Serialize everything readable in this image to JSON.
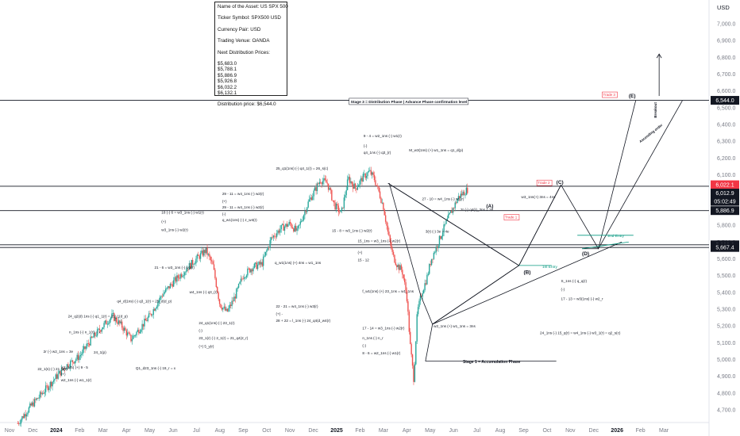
{
  "chart_data": {
    "type": "candlestick",
    "currency": "USD",
    "y_range": [
      4620,
      7160
    ],
    "x_range_months": [
      0,
      28
    ],
    "y_ticks": [
      "7,000.0",
      "6,900.0",
      "6,800.0",
      "6,700.0",
      "6,600.0",
      "6,500.0",
      "6,400.0",
      "6,300.0",
      "6,200.0",
      "6,100.0",
      "6,000.0",
      "5,900.0",
      "5,800.0",
      "5,700.0",
      "5,600.0",
      "5,500.0",
      "5,400.0",
      "5,300.0",
      "5,200.0",
      "5,100.0",
      "5,000.0",
      "4,900.0",
      "4,800.0",
      "4,700.0"
    ],
    "y_tick_values": [
      7000,
      6900,
      6800,
      6700,
      6600,
      6500,
      6400,
      6300,
      6200,
      6100,
      6000,
      5900,
      5800,
      5700,
      5600,
      5500,
      5400,
      5300,
      5200,
      5100,
      5000,
      4900,
      4800,
      4700
    ],
    "x_ticks": [
      {
        "label": "Nov",
        "m": 0
      },
      {
        "label": "Dec",
        "m": 1
      },
      {
        "label": "2024",
        "m": 2
      },
      {
        "label": "Feb",
        "m": 3
      },
      {
        "label": "Mar",
        "m": 4
      },
      {
        "label": "Apr",
        "m": 5
      },
      {
        "label": "May",
        "m": 6
      },
      {
        "label": "Jun",
        "m": 7
      },
      {
        "label": "Jul",
        "m": 8
      },
      {
        "label": "Aug",
        "m": 9
      },
      {
        "label": "Sep",
        "m": 10
      },
      {
        "label": "Oct",
        "m": 11
      },
      {
        "label": "Nov",
        "m": 12
      },
      {
        "label": "Dec",
        "m": 13
      },
      {
        "label": "2025",
        "m": 14
      },
      {
        "label": "Feb",
        "m": 15
      },
      {
        "label": "Mar",
        "m": 16
      },
      {
        "label": "Apr",
        "m": 17
      },
      {
        "label": "May",
        "m": 18
      },
      {
        "label": "Jun",
        "m": 19
      },
      {
        "label": "Jul",
        "m": 20
      },
      {
        "label": "Aug",
        "m": 21
      },
      {
        "label": "Sep",
        "m": 22
      },
      {
        "label": "Oct",
        "m": 23
      },
      {
        "label": "Nov",
        "m": 24
      },
      {
        "label": "Dec",
        "m": 25
      },
      {
        "label": "2026",
        "m": 26
      },
      {
        "label": "Feb",
        "m": 27
      },
      {
        "label": "Mar",
        "m": 28
      }
    ],
    "price_path": [
      [
        0.35,
        4620
      ],
      [
        0.9,
        4720
      ],
      [
        1.4,
        4800
      ],
      [
        1.9,
        4880
      ],
      [
        2.4,
        4960
      ],
      [
        2.8,
        5000
      ],
      [
        3.0,
        5020
      ],
      [
        3.5,
        5120
      ],
      [
        4.0,
        5200
      ],
      [
        4.4,
        5260
      ],
      [
        4.8,
        5200
      ],
      [
        5.2,
        5120
      ],
      [
        5.6,
        5190
      ],
      [
        6.0,
        5260
      ],
      [
        6.5,
        5380
      ],
      [
        7.0,
        5460
      ],
      [
        7.5,
        5530
      ],
      [
        8.0,
        5600
      ],
      [
        8.4,
        5650
      ],
      [
        8.7,
        5560
      ],
      [
        9.0,
        5330
      ],
      [
        9.3,
        5280
      ],
      [
        9.6,
        5360
      ],
      [
        10.0,
        5500
      ],
      [
        10.4,
        5550
      ],
      [
        10.8,
        5570
      ],
      [
        11.2,
        5720
      ],
      [
        11.6,
        5780
      ],
      [
        12.0,
        5810
      ],
      [
        12.3,
        5760
      ],
      [
        12.6,
        5870
      ],
      [
        12.8,
        5940
      ],
      [
        13.0,
        5990
      ],
      [
        13.3,
        6070
      ],
      [
        13.6,
        6050
      ],
      [
        13.9,
        5920
      ],
      [
        14.2,
        5870
      ],
      [
        14.5,
        6080
      ],
      [
        14.8,
        6020
      ],
      [
        15.1,
        6080
      ],
      [
        15.4,
        6120
      ],
      [
        15.6,
        6080
      ],
      [
        15.8,
        6000
      ],
      [
        16.0,
        5910
      ],
      [
        16.2,
        5750
      ],
      [
        16.4,
        5620
      ],
      [
        16.6,
        5560
      ],
      [
        16.8,
        5530
      ],
      [
        17.0,
        5380
      ],
      [
        17.15,
        5080
      ],
      [
        17.3,
        4880
      ],
      [
        17.45,
        5280
      ],
      [
        17.65,
        5400
      ],
      [
        17.85,
        5480
      ],
      [
        18.05,
        5600
      ],
      [
        18.3,
        5680
      ],
      [
        18.55,
        5770
      ],
      [
        18.8,
        5850
      ],
      [
        19.05,
        5920
      ],
      [
        19.2,
        5965
      ],
      [
        19.4,
        5990
      ],
      [
        19.6,
        6012.9
      ]
    ],
    "level_lines": [
      {
        "label": "6,544.0",
        "value": 6544.0,
        "color": "#131722"
      },
      {
        "label": "6,032.2",
        "value": 6032.2,
        "color": "#131722"
      },
      {
        "label": "5,886.9",
        "value": 5886.9,
        "color": "#131722"
      },
      {
        "label": "5,683.0",
        "value": 5683.0,
        "color": "#131722"
      },
      {
        "label": "5,667.4",
        "value": 5667.4,
        "color": "#131722"
      }
    ],
    "price_badges": [
      {
        "label": "6,022.1",
        "value": 6022.1,
        "color": "#f23645"
      },
      {
        "label": "6,012.9",
        "value": 6012.9,
        "color": "#131722"
      },
      {
        "label": "05:02:49",
        "value": 5990,
        "color": "#131722"
      }
    ],
    "forecast_paths": [
      [
        [
          16.2,
          6050
        ],
        [
          21.8,
          5560
        ],
        [
          23.6,
          6040
        ]
      ],
      [
        [
          16.2,
          6050
        ],
        [
          21.8,
          5560
        ]
      ],
      [
        [
          18.1,
          5210
        ],
        [
          21.8,
          5560
        ],
        [
          23.6,
          6040
        ],
        [
          25.2,
          5660
        ],
        [
          26.8,
          6544
        ]
      ],
      [
        [
          18.1,
          5210
        ],
        [
          21.8,
          5560
        ]
      ],
      [
        [
          18.1,
          5210
        ],
        [
          26.2,
          5700
        ]
      ],
      [
        [
          24.5,
          5660
        ],
        [
          25.2,
          5660
        ]
      ],
      [
        [
          25.2,
          5660
        ],
        [
          28.8,
          6544
        ]
      ]
    ],
    "annotations": {
      "stage3": "Stage 3 = Distribution Phase | Advance Phase confirmation level",
      "stage1": "Stage 1 = Accumulation Phase",
      "waveA": "(A)",
      "waveB": "(B)",
      "waveC": "(C)",
      "waveD": "(D)",
      "waveE": "(E)",
      "trade1": "Trade 1",
      "trade2": "Trade 2",
      "trade3": "Trade 3",
      "entry1": "1st Entry",
      "entry2": "2nd Entry",
      "ascending": "Ascending order",
      "breakout": "Breakout",
      "notes": [
        {
          "t": "9 - 4 = w2_1ns (-) w1(r)",
          "m": 15.15,
          "v": 6325
        },
        {
          "t": "(-)",
          "m": 15.15,
          "v": 6265
        },
        {
          "t": "q4_1ns (-) q3_(r)",
          "m": 15.15,
          "v": 6225
        },
        {
          "t": "M_w3(1ns) (+) w1_1ns = q1_d(p)",
          "m": 17.1,
          "v": 6240
        },
        {
          "t": "25_q1(1ns) (-) q4_1(r) = 26_s(c)",
          "m": 11.4,
          "v": 6130
        },
        {
          "t": "29 - 11 = w4_1ns (-) w2(r)",
          "m": 9.1,
          "v": 5980
        },
        {
          "t": "(+)",
          "m": 9.1,
          "v": 5935
        },
        {
          "t": "29 - 11 = w4_1ns (-) w2(r)",
          "m": 9.1,
          "v": 5900
        },
        {
          "t": "(-)",
          "m": 9.1,
          "v": 5860
        },
        {
          "t": "q_w1(1ns) (-) z_w4(r)",
          "m": 9.1,
          "v": 5825
        },
        {
          "t": "18 (-) 6 = w3_1ns (-) w1(r)",
          "m": 6.5,
          "v": 5870
        },
        {
          "t": "(+)",
          "m": 6.5,
          "v": 5815
        },
        {
          "t": "w3_1ns (-) w2(r)",
          "m": 6.5,
          "v": 5765
        },
        {
          "t": "27 - 10 = w4_1ns (-) w1(r)",
          "m": 17.65,
          "v": 5950
        },
        {
          "t": "2r (-) q4(r)_3ns = 2e",
          "m": 19.3,
          "v": 5885
        },
        {
          "t": "w3_1ns(+) 3ns = 4ns",
          "m": 21.9,
          "v": 5960
        },
        {
          "t": "15 - 8 = w3_1ns (-) w2(r)",
          "m": 13.8,
          "v": 5760
        },
        {
          "t": "3(r) (-) 3e = 4e",
          "m": 17.8,
          "v": 5755
        },
        {
          "t": "15_1ns = w3_1ns (-) w2(r)",
          "m": 14.9,
          "v": 5700
        },
        {
          "t": "(+)",
          "m": 14.9,
          "v": 5630
        },
        {
          "t": "15 - 12",
          "m": 14.9,
          "v": 5585
        },
        {
          "t": "21 - 6 = w3_1ns (-) w1(r)",
          "m": 6.2,
          "v": 5540
        },
        {
          "t": "q_w1(1ns) (+) 4ns = w1_1ns",
          "m": 11.35,
          "v": 5570
        },
        {
          "t": "w4_1ns (-) q3_(r)",
          "m": 7.7,
          "v": 5395
        },
        {
          "t": "q4_d(1ns) (-) q3_1(r) = 25_d(d_p)",
          "m": 4.6,
          "v": 5340
        },
        {
          "t": "22 - 21 = w4_1ns (-) w3(r)",
          "m": 11.4,
          "v": 5310
        },
        {
          "t": "(+) -",
          "m": 11.4,
          "v": 5265
        },
        {
          "t": "28 + 22 = l_1ns (-) 24_q4(d_w4(r)",
          "m": 11.4,
          "v": 5225
        },
        {
          "t": "f_w1(1ns) (+) 23_1ns = w1_1ns",
          "m": 15.1,
          "v": 5400
        },
        {
          "t": "24_q2(d) 1ns (-) q1_1(r) = 25_1(d_p)",
          "m": 2.5,
          "v": 5250
        },
        {
          "t": "n_1ns (-) n_1(r) = x",
          "m": 2.55,
          "v": 5155
        },
        {
          "t": "24_q1(1ns) (-) 23_1(r)",
          "m": 8.1,
          "v": 5210
        },
        {
          "t": "(-)",
          "m": 8.1,
          "v": 5165
        },
        {
          "t": "23_1(r) (-) 2_1(r) = 21_q4(2_r)",
          "m": 8.1,
          "v": 5120
        },
        {
          "t": "(+) 5_y(r)",
          "m": 8.1,
          "v": 5070
        },
        {
          "t": "17 - 14 = w3_1ns (-) w2(r)",
          "m": 15.1,
          "v": 5180
        },
        {
          "t": "n_1ns (-) n_r",
          "m": 15.1,
          "v": 5120
        },
        {
          "t": "(-)",
          "m": 15.1,
          "v": 5075
        },
        {
          "t": "8 - 6 = w2_1ns (-) w1(r)",
          "m": 15.1,
          "v": 5030
        },
        {
          "t": "w2_1ns (+) w1_1ns = 3ns",
          "m": 18.15,
          "v": 5190
        },
        {
          "t": "2r (-) w2_1ns = 3e",
          "m": 1.45,
          "v": 5040
        },
        {
          "t": "24_1(p)",
          "m": 3.6,
          "v": 5035
        },
        {
          "t": "22_1(s) (-) 21_1(r)",
          "m": 1.2,
          "v": 4935
        },
        {
          "t": "w2_1(5) (+) 9 - 5",
          "m": 2.2,
          "v": 4945
        },
        {
          "t": "(+)",
          "m": 2.2,
          "v": 4905
        },
        {
          "t": "w2_1ns (-) w1_1(r)",
          "m": 2.2,
          "v": 4870
        },
        {
          "t": "Q1_d23_1ns (-) 19_r = x",
          "m": 5.4,
          "v": 4940
        },
        {
          "t": "S_1ns (-) q_q(r)",
          "m": 23.6,
          "v": 5460
        },
        {
          "t": "(-)",
          "m": 23.6,
          "v": 5410
        },
        {
          "t": "17 - 13 = w3(1ns) (-) w2_r",
          "m": 23.6,
          "v": 5355
        },
        {
          "t": "24_1ns (-) 15_q(r) = w4_1ns (-) w3_1(r) = q2_s(c)",
          "m": 22.7,
          "v": 5150
        }
      ]
    }
  },
  "info_box": {
    "name": "Name of the Asset: US SPX 500",
    "ticker": "Ticker Symbol: SPX500 USD",
    "currency": "Currency Pair: USD",
    "venue": "Trading Venue: OANDA",
    "next_label": "Next Distribution Prices:",
    "prices": [
      "$5,683.0",
      "$5,788.1",
      "$5,886.9",
      "$5,926.8",
      "$6,032.2",
      "$6,132.1"
    ],
    "distribution": "Distribution price: $6,544.0"
  },
  "colors": {
    "up": "#26a69a",
    "down": "#ef5350",
    "line": "#131722",
    "green_text": "#089981",
    "red_tag": "#f23645",
    "axis_text": "#787b86"
  }
}
